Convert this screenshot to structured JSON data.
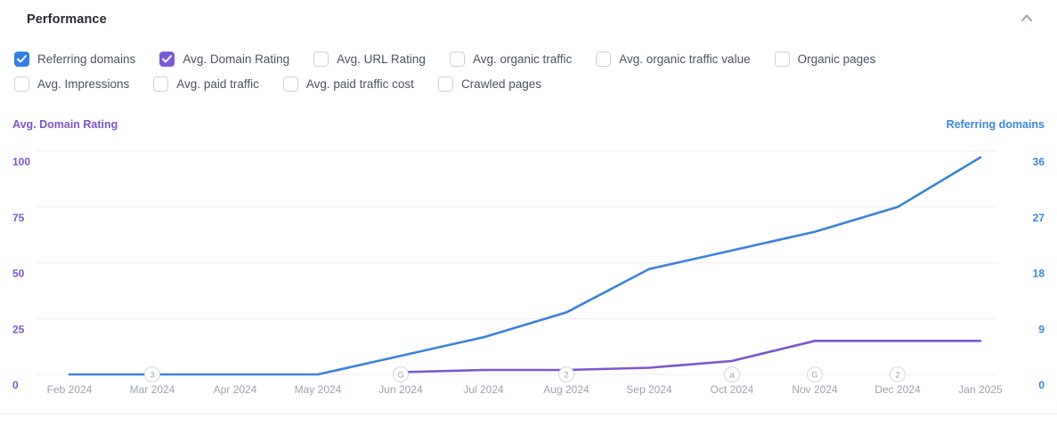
{
  "header": {
    "title": "Performance",
    "collapse_icon": "chevron-up"
  },
  "colors": {
    "blue": "#2f80e0",
    "purple": "#7a5bd6",
    "line_blue": "#3b82dc",
    "line_purple": "#7a57ce",
    "left_axis_text": "#7b57ce",
    "right_axis_text": "#3d85e0",
    "gridline": "#ededf0",
    "month_label": "#9ca3af",
    "marker_stroke": "#d2d7dd",
    "marker_text": "#9aa2ad",
    "checkbox_border": "#ccd2da",
    "title_text": "#252b36"
  },
  "metrics": {
    "row1": [
      {
        "label": "Referring domains",
        "checked": true,
        "check_color": "#2f80e0"
      },
      {
        "label": "Avg. Domain Rating",
        "checked": true,
        "check_color": "#7a5bd6"
      },
      {
        "label": "Avg. URL Rating",
        "checked": false,
        "check_color": null
      },
      {
        "label": "Avg. organic traffic",
        "checked": false,
        "check_color": null
      },
      {
        "label": "Avg. organic traffic value",
        "checked": false,
        "check_color": null
      },
      {
        "label": "Organic pages",
        "checked": false,
        "check_color": null
      }
    ],
    "row2": [
      {
        "label": "Avg. Impressions",
        "checked": false,
        "check_color": null
      },
      {
        "label": "Avg. paid traffic",
        "checked": false,
        "check_color": null
      },
      {
        "label": "Avg. paid traffic cost",
        "checked": false,
        "check_color": null
      },
      {
        "label": "Crawled pages",
        "checked": false,
        "check_color": null
      }
    ]
  },
  "chart_data": {
    "type": "line",
    "title": "",
    "x": [
      "Feb 2024",
      "Mar 2024",
      "Apr 2024",
      "May 2024",
      "Jun 2024",
      "Jul 2024",
      "Aug 2024",
      "Sep 2024",
      "Oct 2024",
      "Nov 2024",
      "Dec 2024",
      "Jan 2025"
    ],
    "series": [
      {
        "name": "Referring domains",
        "axis": "right",
        "color": "#3b82dc",
        "values": [
          0,
          0,
          0,
          0,
          3,
          6,
          10,
          17,
          20,
          23,
          27,
          35
        ]
      },
      {
        "name": "Avg. Domain Rating",
        "axis": "left",
        "color": "#7a57ce",
        "values": [
          null,
          null,
          null,
          null,
          1,
          2,
          2,
          3,
          6,
          15,
          15,
          15
        ]
      }
    ],
    "left_axis": {
      "title": "Avg. Domain Rating",
      "ticks": [
        0,
        25,
        50,
        75,
        100
      ],
      "range": [
        0,
        100
      ],
      "text_color": "#7b57ce"
    },
    "right_axis": {
      "title": "Referring domains",
      "ticks": [
        0,
        9,
        18,
        27,
        36
      ],
      "range": [
        0,
        36
      ],
      "text_color": "#3d85e0"
    },
    "event_markers": [
      {
        "x": "Mar 2024",
        "label": "3"
      },
      {
        "x": "Jun 2024",
        "label": "G"
      },
      {
        "x": "Aug 2024",
        "label": "2"
      },
      {
        "x": "Oct 2024",
        "label": "a"
      },
      {
        "x": "Nov 2024",
        "label": "G"
      },
      {
        "x": "Dec 2024",
        "label": "2"
      }
    ],
    "grid": true,
    "legend_position": "none"
  }
}
